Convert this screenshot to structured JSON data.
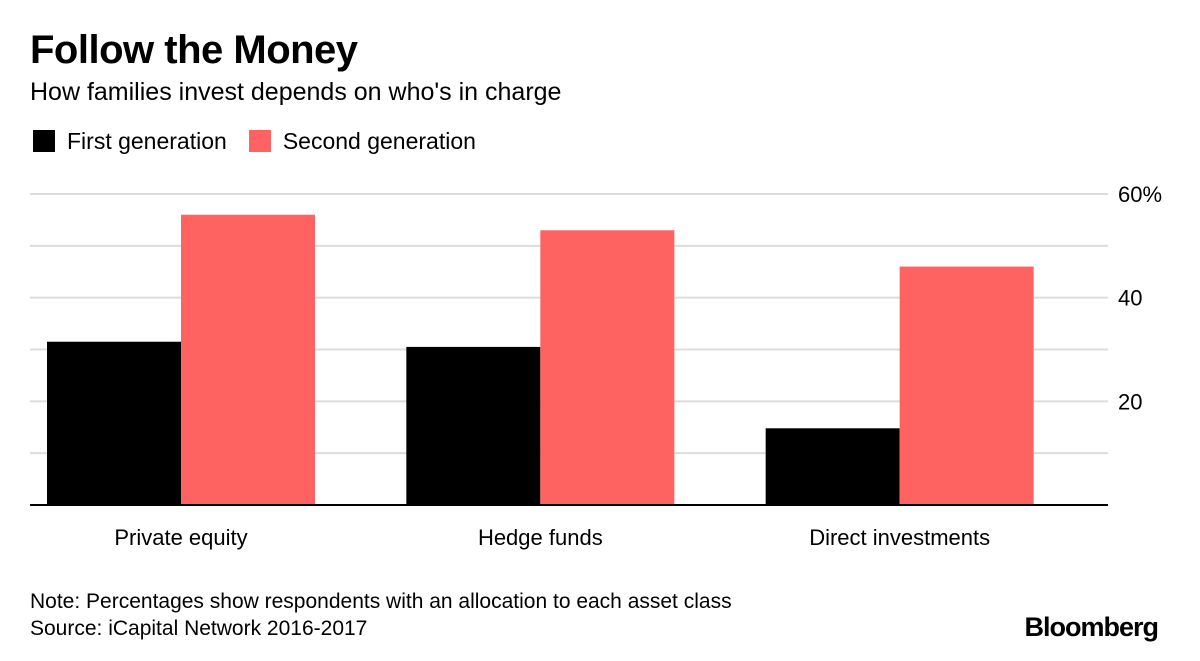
{
  "header": {
    "title": "Follow the Money",
    "subtitle": "How families invest depends on who's in charge"
  },
  "legend": {
    "items": [
      {
        "label": "First generation",
        "color": "#000000"
      },
      {
        "label": "Second generation",
        "color": "#ff6361"
      }
    ]
  },
  "chart_data": {
    "type": "bar",
    "title": "Follow the Money",
    "subtitle": "How families invest depends on who's in charge",
    "categories": [
      "Private equity",
      "Hedge funds",
      "Direct investments"
    ],
    "series": [
      {
        "name": "First generation",
        "color": "#000000",
        "values": [
          31.5,
          30.5,
          14.8
        ]
      },
      {
        "name": "Second generation",
        "color": "#ff6361",
        "values": [
          56,
          53,
          46
        ]
      }
    ],
    "ylim": [
      0,
      60
    ],
    "yticks": [
      20,
      40,
      60
    ],
    "ytick_labels": [
      "20",
      "40",
      "60%"
    ],
    "gridlines": [
      10,
      20,
      30,
      40,
      50,
      60
    ],
    "grid": true,
    "legend_position": "top-left",
    "xlabel": "",
    "ylabel": ""
  },
  "footer": {
    "note": "Note: Percentages show respondents with an allocation to each asset class",
    "source": "Source: iCapital Network 2016-2017",
    "brand": "Bloomberg"
  }
}
